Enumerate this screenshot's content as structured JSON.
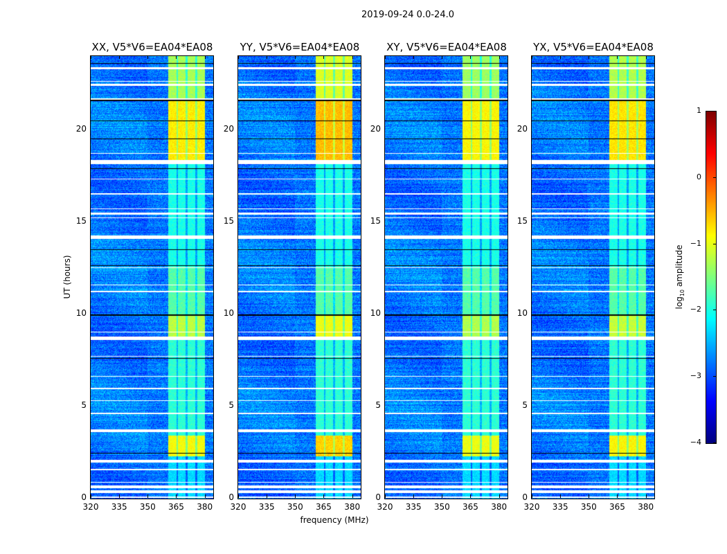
{
  "chart_data": {
    "type": "heatmap",
    "title": "2019-09-24 0.0-24.0",
    "xlabel": "frequency (MHz)",
    "ylabel": "UT (hours)",
    "xlim": [
      320,
      384.5
    ],
    "ylim": [
      0,
      24
    ],
    "xticks": [
      320,
      335,
      350,
      365,
      380
    ],
    "yticks": [
      0,
      5,
      10,
      15,
      20
    ],
    "panels": [
      {
        "title": "XX, V5*V6=EA04*EA08",
        "band_boost": 0.0
      },
      {
        "title": "YY, V5*V6=EA04*EA08",
        "band_boost": 0.25
      },
      {
        "title": "XY, V5*V6=EA04*EA08",
        "band_boost": -0.05
      },
      {
        "title": "YX, V5*V6=EA04*EA08",
        "band_boost": 0.05
      }
    ],
    "background_level": -2.8,
    "bright_band_mhz": [
      360.7,
      380.0
    ],
    "band_gaps_mhz": [
      365.5,
      370.5,
      375.6
    ],
    "band_levels_by_time": [
      {
        "t": [
          0,
          2.3
        ],
        "level": -2.3
      },
      {
        "t": [
          2.3,
          3.4
        ],
        "level": -0.9
      },
      {
        "t": [
          3.4,
          8.8
        ],
        "level": -1.9
      },
      {
        "t": [
          8.8,
          10.0
        ],
        "level": -1.2
      },
      {
        "t": [
          10.0,
          12.6
        ],
        "level": -1.7
      },
      {
        "t": [
          12.6,
          18.3
        ],
        "level": -2.0
      },
      {
        "t": [
          18.3,
          21.6
        ],
        "level": -0.8
      },
      {
        "t": [
          21.6,
          24.0
        ],
        "level": -1.3
      }
    ],
    "flagged_time_ranges": [
      [
        0.05,
        0.12
      ],
      [
        0.3,
        0.45
      ],
      [
        0.55,
        0.7
      ],
      [
        0.85,
        0.9
      ],
      [
        1.55,
        1.6
      ],
      [
        1.95,
        2.12
      ],
      [
        3.6,
        3.77
      ],
      [
        4.6,
        4.65
      ],
      [
        5.3,
        5.35
      ],
      [
        5.95,
        6.0
      ],
      [
        6.6,
        6.65
      ],
      [
        7.7,
        7.75
      ],
      [
        8.6,
        8.8
      ],
      [
        9.0,
        9.05
      ],
      [
        11.2,
        11.25
      ],
      [
        11.55,
        11.6
      ],
      [
        12.5,
        12.55
      ],
      [
        14.1,
        14.27
      ],
      [
        15.2,
        15.25
      ],
      [
        15.4,
        15.5
      ],
      [
        15.7,
        15.75
      ],
      [
        16.5,
        16.55
      ],
      [
        17.3,
        17.35
      ],
      [
        18.15,
        18.35
      ],
      [
        18.7,
        18.75
      ],
      [
        21.65,
        21.7
      ],
      [
        22.4,
        22.5
      ],
      [
        22.6,
        22.65
      ],
      [
        23.3,
        23.4
      ]
    ],
    "dark_time_lines": [
      2.45,
      7.6,
      9.95,
      12.65,
      13.5,
      17.9,
      19.5,
      20.5,
      21.6,
      23.6
    ],
    "colorbar": {
      "label": "log10 amplitude",
      "label_base": "log",
      "label_sub": "10",
      "label_rest": " amplitude",
      "range": [
        -4,
        1
      ],
      "ticks": [
        1,
        0,
        -1,
        -2,
        -3,
        -4
      ],
      "tick_labels": [
        "1",
        "0",
        "−1",
        "−2",
        "−3",
        "−4"
      ],
      "colormap": "jet"
    }
  }
}
